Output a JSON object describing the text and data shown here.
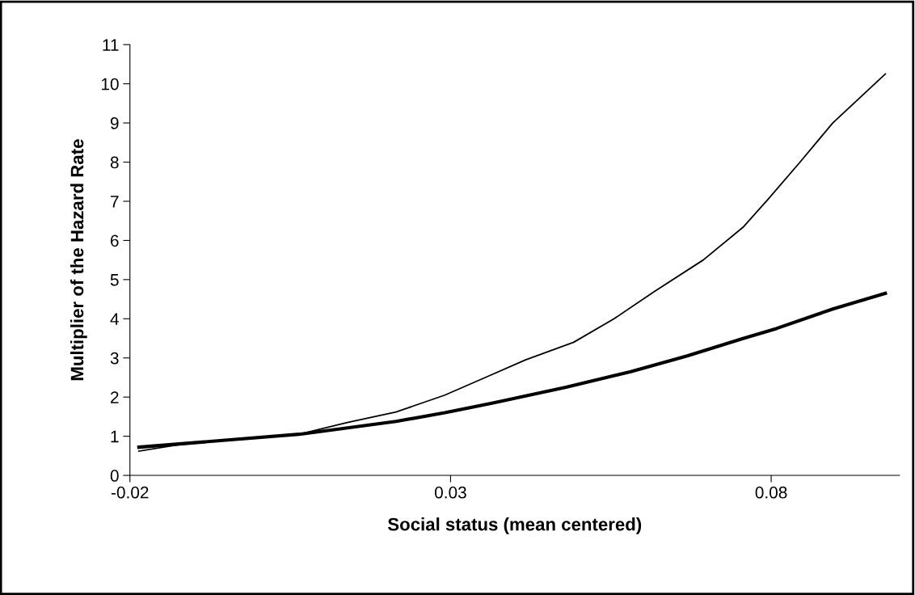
{
  "chart_data": {
    "type": "line",
    "xlabel": "Social status (mean centered)",
    "ylabel": "Multiplier of the Hazard Rate",
    "xlim": [
      -0.02,
      0.1
    ],
    "xticks": [
      -0.02,
      0.03,
      0.08
    ],
    "ylim": [
      0,
      11
    ],
    "yticks": [
      0,
      1,
      2,
      3,
      4,
      5,
      6,
      7,
      8,
      9,
      10,
      11
    ],
    "grid": false,
    "marker": "none",
    "line_style": "solid",
    "series": [
      {
        "color": "#000000",
        "x": [
          -0.0186,
          -0.0126,
          -0.0037,
          0.0064,
          0.0139,
          0.0215,
          0.0291,
          0.0354,
          0.0417,
          0.0492,
          0.0555,
          0.0618,
          0.0694,
          0.0757,
          0.0795,
          0.0845,
          0.0896,
          0.0978
        ],
        "values": [
          0.62,
          0.78,
          0.92,
          1.05,
          1.35,
          1.62,
          2.05,
          2.5,
          2.95,
          3.4,
          4.0,
          4.7,
          5.5,
          6.35,
          7.05,
          8.0,
          9.0,
          10.25
        ]
      },
      {
        "color": "#000000",
        "x": [
          -0.0186,
          -0.0088,
          0.0064,
          0.0215,
          0.0291,
          0.0366,
          0.048,
          0.0581,
          0.0669,
          0.0757,
          0.0808,
          0.0896,
          0.0978
        ],
        "values": [
          0.72,
          0.85,
          1.05,
          1.38,
          1.6,
          1.85,
          2.25,
          2.65,
          3.05,
          3.5,
          3.75,
          4.25,
          4.65
        ]
      }
    ]
  }
}
